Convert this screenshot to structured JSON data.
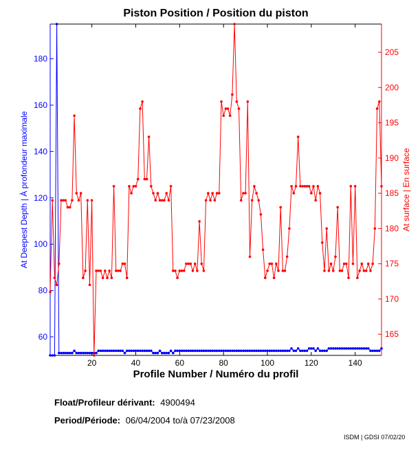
{
  "chart_data": {
    "type": "line",
    "title": "Piston Position / Position du piston",
    "xlabel": "Profile Number / Numéro du profil",
    "ylabel_left": "At Deepest Depth | À profondeur maximale",
    "ylabel_right": "At surface | En surface",
    "xlim": [
      1,
      152
    ],
    "ylim_left": [
      52,
      195
    ],
    "ylim_right": [
      162,
      209
    ],
    "xticks": [
      20,
      40,
      60,
      80,
      100,
      120,
      140
    ],
    "yticks_left": [
      60,
      80,
      100,
      120,
      140,
      160,
      180
    ],
    "yticks_right": [
      165,
      170,
      175,
      180,
      185,
      190,
      195,
      200,
      205
    ],
    "grid": false,
    "colors": {
      "left": "#0000ff",
      "right": "#ff0000"
    },
    "series": [
      {
        "axis": "left",
        "color": "#0000ff",
        "x": [
          1,
          2,
          3,
          4,
          5,
          6,
          7,
          8,
          9,
          10,
          11,
          12,
          13,
          14,
          15,
          16,
          17,
          18,
          19,
          20,
          21,
          22,
          23,
          24,
          25,
          26,
          27,
          28,
          29,
          30,
          31,
          32,
          33,
          34,
          35,
          36,
          37,
          38,
          39,
          40,
          41,
          42,
          43,
          44,
          45,
          46,
          47,
          48,
          49,
          50,
          51,
          52,
          53,
          54,
          55,
          56,
          57,
          58,
          59,
          60,
          61,
          62,
          63,
          64,
          65,
          66,
          67,
          68,
          69,
          70,
          71,
          72,
          73,
          74,
          75,
          76,
          77,
          78,
          79,
          80,
          81,
          82,
          83,
          84,
          85,
          86,
          87,
          88,
          89,
          90,
          91,
          92,
          93,
          94,
          95,
          96,
          97,
          98,
          99,
          100,
          101,
          102,
          103,
          104,
          105,
          106,
          107,
          108,
          109,
          110,
          111,
          112,
          113,
          114,
          115,
          116,
          117,
          118,
          119,
          120,
          121,
          122,
          123,
          124,
          125,
          126,
          127,
          128,
          129,
          130,
          131,
          132,
          133,
          134,
          135,
          136,
          137,
          138,
          139,
          140,
          141,
          142,
          143,
          144,
          145,
          146,
          147,
          148,
          149,
          150,
          151,
          152
        ],
        "y": [
          52,
          52,
          52,
          195,
          53,
          53,
          53,
          53,
          53,
          53,
          53,
          54,
          53,
          53,
          53,
          53,
          53,
          53,
          53,
          53,
          53,
          53,
          54,
          54,
          54,
          54,
          54,
          54,
          54,
          54,
          54,
          54,
          54,
          54,
          53,
          54,
          54,
          54,
          54,
          54,
          54,
          54,
          54,
          54,
          54,
          54,
          54,
          53,
          53,
          53,
          54,
          53,
          53,
          53,
          53,
          54,
          53,
          54,
          54,
          54,
          54,
          54,
          54,
          54,
          54,
          54,
          54,
          54,
          54,
          54,
          54,
          54,
          54,
          54,
          54,
          54,
          54,
          54,
          54,
          54,
          54,
          54,
          54,
          54,
          54,
          54,
          54,
          54,
          54,
          54,
          54,
          54,
          54,
          54,
          54,
          54,
          54,
          54,
          54,
          54,
          54,
          54,
          54,
          54,
          54,
          54,
          54,
          54,
          54,
          54,
          55,
          54,
          54,
          55,
          54,
          54,
          54,
          54,
          55,
          55,
          55,
          54,
          55,
          54,
          54,
          54,
          54,
          55,
          55,
          55,
          55,
          55,
          55,
          55,
          55,
          55,
          55,
          55,
          55,
          55,
          55,
          55,
          55,
          55,
          55,
          55,
          54,
          54,
          54,
          54,
          54,
          55
        ]
      },
      {
        "axis": "right",
        "color": "#ff0000",
        "x": [
          1,
          2,
          3,
          4,
          5,
          6,
          7,
          8,
          9,
          10,
          11,
          12,
          13,
          14,
          15,
          16,
          17,
          18,
          19,
          20,
          21,
          22,
          23,
          24,
          25,
          26,
          27,
          28,
          29,
          30,
          31,
          32,
          33,
          34,
          35,
          36,
          37,
          38,
          39,
          40,
          41,
          42,
          43,
          44,
          45,
          46,
          47,
          48,
          49,
          50,
          51,
          52,
          53,
          54,
          55,
          56,
          57,
          58,
          59,
          60,
          61,
          62,
          63,
          64,
          65,
          66,
          67,
          68,
          69,
          70,
          71,
          72,
          73,
          74,
          75,
          76,
          77,
          78,
          79,
          80,
          81,
          82,
          83,
          84,
          85,
          86,
          87,
          88,
          89,
          90,
          91,
          92,
          93,
          94,
          95,
          96,
          97,
          98,
          99,
          100,
          101,
          102,
          103,
          104,
          105,
          106,
          107,
          108,
          109,
          110,
          111,
          112,
          113,
          114,
          115,
          116,
          117,
          118,
          119,
          120,
          121,
          122,
          123,
          124,
          125,
          126,
          127,
          128,
          129,
          130,
          131,
          132,
          133,
          134,
          135,
          136,
          137,
          138,
          139,
          140,
          141,
          142,
          143,
          144,
          145,
          146,
          147,
          148,
          149,
          150,
          151,
          152
        ],
        "y": [
          171,
          184,
          173,
          172,
          175,
          184,
          184,
          184,
          183,
          183,
          184,
          196,
          185,
          184,
          185,
          173,
          174,
          184,
          172,
          184,
          162,
          174,
          174,
          174,
          173,
          174,
          173,
          174,
          173,
          186,
          174,
          174,
          174,
          175,
          175,
          173,
          186,
          185,
          186,
          186,
          187,
          197,
          198,
          187,
          187,
          193,
          186,
          185,
          184,
          185,
          184,
          184,
          184,
          185,
          184,
          186,
          174,
          174,
          173,
          174,
          174,
          174,
          175,
          175,
          175,
          174,
          175,
          174,
          181,
          175,
          174,
          184,
          185,
          184,
          185,
          184,
          185,
          185,
          198,
          196,
          197,
          197,
          196,
          199,
          209,
          198,
          197,
          184,
          185,
          185,
          198,
          176,
          184,
          186,
          185,
          184,
          182,
          177,
          173,
          174,
          175,
          175,
          173,
          175,
          174,
          183,
          174,
          174,
          176,
          180,
          186,
          185,
          186,
          193,
          186,
          186,
          186,
          186,
          186,
          185,
          186,
          184,
          186,
          185,
          178,
          174,
          180,
          174,
          175,
          174,
          176,
          183,
          174,
          174,
          175,
          175,
          173,
          186,
          175,
          186,
          173,
          174,
          175,
          174,
          174,
          175,
          174,
          175,
          180,
          197,
          198,
          186
        ]
      }
    ]
  },
  "info": {
    "float_label": "Float/Profileur dérivant:",
    "float_value": "4900494",
    "period_label": "Period/Période:",
    "period_value": "06/04/2004  to/à  07/23/2008",
    "credit": "ISDM | GDSI 07/02/20"
  }
}
